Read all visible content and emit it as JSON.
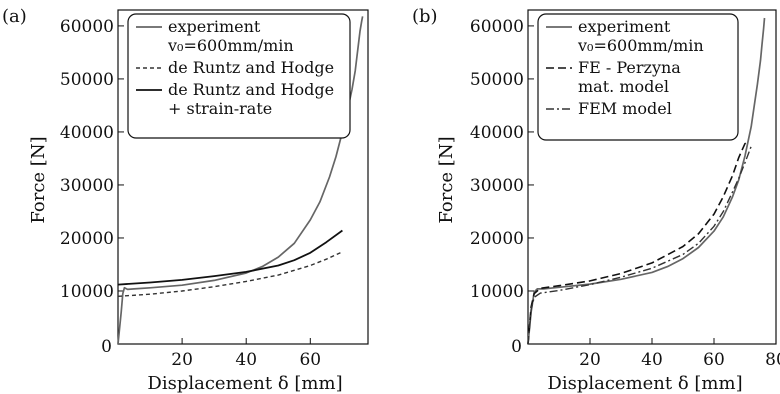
{
  "chart_data": [
    {
      "type": "line",
      "panel_label": "(a)",
      "xlabel": "Displacement δ [mm]",
      "ylabel": "Force [N]",
      "xlim": [
        0,
        78
      ],
      "ylim": [
        0,
        63000
      ],
      "xticks": [
        20,
        40,
        60
      ],
      "yticks": [
        0,
        10000,
        20000,
        30000,
        40000,
        50000,
        60000
      ],
      "origin_label": "0",
      "grid": false,
      "legend": {
        "placement": "top",
        "entries": [
          {
            "series": 0,
            "lines": [
              "experiment",
              "v₀=600mm/min"
            ]
          },
          {
            "series": 1,
            "lines": [
              "de Runtz and Hodge"
            ]
          },
          {
            "series": 2,
            "lines": [
              "de Runtz and Hodge",
              "+ strain-rate"
            ]
          }
        ]
      },
      "series": [
        {
          "color": "#666666",
          "dash": "solid",
          "width": 1.7,
          "x": [
            0,
            1,
            1.5,
            2,
            3,
            5,
            10,
            20,
            30,
            40,
            45,
            50,
            55,
            60,
            63,
            66,
            68,
            70,
            72,
            73,
            74,
            74.5,
            75,
            75.5,
            76,
            76.3
          ],
          "y": [
            0,
            6000,
            9500,
            10600,
            10300,
            10400,
            10600,
            11100,
            12000,
            13400,
            14600,
            16400,
            19000,
            23400,
            26800,
            31500,
            35300,
            40000,
            45200,
            48000,
            51500,
            54000,
            56500,
            59000,
            60800,
            61800
          ]
        },
        {
          "color": "#333333",
          "dash": "4,3",
          "width": 1.4,
          "x": [
            0,
            10,
            20,
            30,
            40,
            50,
            60,
            65,
            70
          ],
          "y": [
            9000,
            9400,
            10000,
            10800,
            11800,
            13000,
            14800,
            16000,
            17400
          ]
        },
        {
          "color": "#111111",
          "dash": "solid",
          "width": 1.8,
          "x": [
            0,
            10,
            20,
            30,
            40,
            50,
            55,
            60,
            65,
            70
          ],
          "y": [
            11200,
            11600,
            12100,
            12800,
            13600,
            14800,
            15800,
            17200,
            19200,
            21400
          ]
        }
      ]
    },
    {
      "type": "line",
      "panel_label": "(b)",
      "xlabel": "Displacement δ [mm]",
      "ylabel": "Force [N]",
      "xlim": [
        0,
        80
      ],
      "ylim": [
        0,
        63000
      ],
      "xticks": [
        20,
        40,
        60,
        80
      ],
      "yticks": [
        0,
        10000,
        20000,
        30000,
        40000,
        50000,
        60000
      ],
      "origin_label": "0",
      "grid": false,
      "legend": {
        "placement": "top",
        "entries": [
          {
            "series": 0,
            "lines": [
              "experiment",
              "v₀=600mm/min"
            ]
          },
          {
            "series": 1,
            "lines": [
              "FE - Perzyna",
              "mat. model"
            ]
          },
          {
            "series": 2,
            "lines": [
              "FEM model"
            ]
          }
        ]
      },
      "series": [
        {
          "color": "#666666",
          "dash": "solid",
          "width": 1.7,
          "x": [
            0,
            1,
            2,
            3,
            5,
            10,
            20,
            30,
            40,
            45,
            50,
            55,
            60,
            63,
            66,
            68,
            70,
            72,
            73,
            74,
            75,
            75.5,
            76,
            76.3
          ],
          "y": [
            0,
            6000,
            9800,
            10400,
            10400,
            10700,
            11300,
            12200,
            13500,
            14600,
            16100,
            18200,
            21300,
            24000,
            27800,
            31000,
            35500,
            41000,
            45000,
            49000,
            53500,
            56500,
            59500,
            61500
          ]
        },
        {
          "color": "#111111",
          "dash": "8,4",
          "width": 1.6,
          "x": [
            0,
            1,
            2,
            4,
            10,
            20,
            30,
            40,
            50,
            55,
            60,
            63,
            66,
            68,
            70,
            71
          ],
          "y": [
            0,
            7000,
            9500,
            10500,
            11000,
            11900,
            13300,
            15300,
            18400,
            20800,
            24500,
            27800,
            31800,
            35200,
            37800,
            38200
          ]
        },
        {
          "color": "#333333",
          "dash": "8,3,2,3",
          "width": 1.4,
          "x": [
            0,
            1,
            2,
            4,
            10,
            20,
            30,
            40,
            50,
            55,
            60,
            63,
            66,
            68,
            70,
            72
          ],
          "y": [
            0,
            6500,
            8800,
            9600,
            10100,
            11200,
            12600,
            14300,
            16900,
            19000,
            22200,
            25000,
            28700,
            31300,
            34200,
            37300
          ]
        }
      ]
    }
  ]
}
